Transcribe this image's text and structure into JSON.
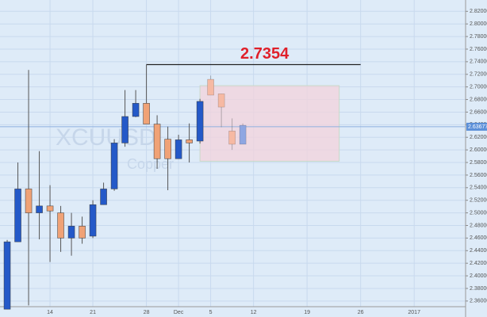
{
  "chart_data": {
    "type": "candlestick",
    "symbol": "XCUUSD",
    "description": "Copper",
    "up_color": "#2459c8",
    "down_color": "#f0a276",
    "candles": {
      "x": [
        0,
        1,
        2,
        3,
        4,
        5,
        6,
        7,
        8,
        9,
        10,
        11,
        12,
        13,
        14,
        15,
        16,
        17,
        18
      ],
      "open": [
        2.347,
        2.454,
        2.538,
        2.5,
        2.511,
        2.5,
        2.46,
        2.479,
        2.463,
        2.513,
        2.538,
        2.611,
        2.653,
        2.674,
        2.641,
        2.617,
        2.586,
        2.616,
        2.614
      ],
      "high": [
        2.457,
        2.58,
        2.727,
        2.598,
        2.544,
        2.511,
        2.5,
        2.494,
        2.52,
        2.548,
        2.617,
        2.695,
        2.695,
        2.7354,
        2.655,
        2.637,
        2.624,
        2.642,
        2.681
      ],
      "low": [
        2.347,
        2.454,
        2.353,
        2.458,
        2.422,
        2.438,
        2.432,
        2.451,
        2.46,
        2.513,
        2.535,
        2.605,
        2.652,
        2.641,
        2.57,
        2.536,
        2.586,
        2.58,
        2.61
      ],
      "close": [
        2.454,
        2.538,
        2.5,
        2.511,
        2.503,
        2.46,
        2.479,
        2.46,
        2.513,
        2.538,
        2.611,
        2.653,
        2.674,
        2.641,
        2.586,
        2.586,
        2.616,
        2.611,
        2.677
      ]
    },
    "projection": {
      "up_color": "#8ea6e2",
      "down_color": "#f6b9a3",
      "x": [
        19,
        20,
        21,
        22
      ],
      "open": [
        2.712,
        2.689,
        2.63,
        2.609
      ],
      "high": [
        2.718,
        2.689,
        2.65,
        2.642
      ],
      "low": [
        2.687,
        2.636,
        2.6,
        2.609
      ],
      "close": [
        2.687,
        2.668,
        2.609,
        2.639
      ]
    },
    "zone": {
      "x": [
        18,
        31
      ],
      "y": [
        2.582,
        2.702
      ],
      "color": "#f3d3dc"
    },
    "level": {
      "value": 2.7354,
      "label": "2.7354",
      "x": [
        13,
        33
      ]
    },
    "last_price": {
      "value": 2.63677,
      "label": "2.63677"
    },
    "xlim": [
      -0.67,
      42.8
    ],
    "ylim": [
      2.351,
      2.838
    ],
    "xticks": [
      {
        "value": 4,
        "label": "14"
      },
      {
        "value": 8,
        "label": "21"
      },
      {
        "value": 13,
        "label": "28"
      },
      {
        "value": 16,
        "label": "Dec"
      },
      {
        "value": 19,
        "label": "5"
      },
      {
        "value": 23,
        "label": "12"
      },
      {
        "value": 28,
        "label": "19"
      },
      {
        "value": 33,
        "label": "26"
      },
      {
        "value": 38,
        "label": "2017"
      }
    ],
    "yticks": [
      {
        "value": 2.36,
        "label": "2.36000"
      },
      {
        "value": 2.38,
        "label": "2.38000"
      },
      {
        "value": 2.4,
        "label": "2.40000"
      },
      {
        "value": 2.42,
        "label": "2.42000"
      },
      {
        "value": 2.44,
        "label": "2.44000"
      },
      {
        "value": 2.46,
        "label": "2.46000"
      },
      {
        "value": 2.48,
        "label": "2.48000"
      },
      {
        "value": 2.5,
        "label": "2.50000"
      },
      {
        "value": 2.52,
        "label": "2.52000"
      },
      {
        "value": 2.54,
        "label": "2.54000"
      },
      {
        "value": 2.56,
        "label": "2.56000"
      },
      {
        "value": 2.58,
        "label": "2.58000"
      },
      {
        "value": 2.6,
        "label": "2.60000"
      },
      {
        "value": 2.62,
        "label": "2.62000"
      },
      {
        "value": 2.64,
        "label": "2.64000"
      },
      {
        "value": 2.66,
        "label": "2.66000"
      },
      {
        "value": 2.68,
        "label": "2.68000"
      },
      {
        "value": 2.7,
        "label": "2.70000"
      },
      {
        "value": 2.72,
        "label": "2.72000"
      },
      {
        "value": 2.74,
        "label": "2.74000"
      },
      {
        "value": 2.76,
        "label": "2.76000"
      },
      {
        "value": 2.78,
        "label": "2.78000"
      },
      {
        "value": 2.8,
        "label": "2.80000"
      },
      {
        "value": 2.82,
        "label": "2.82000"
      }
    ],
    "grid": true
  }
}
